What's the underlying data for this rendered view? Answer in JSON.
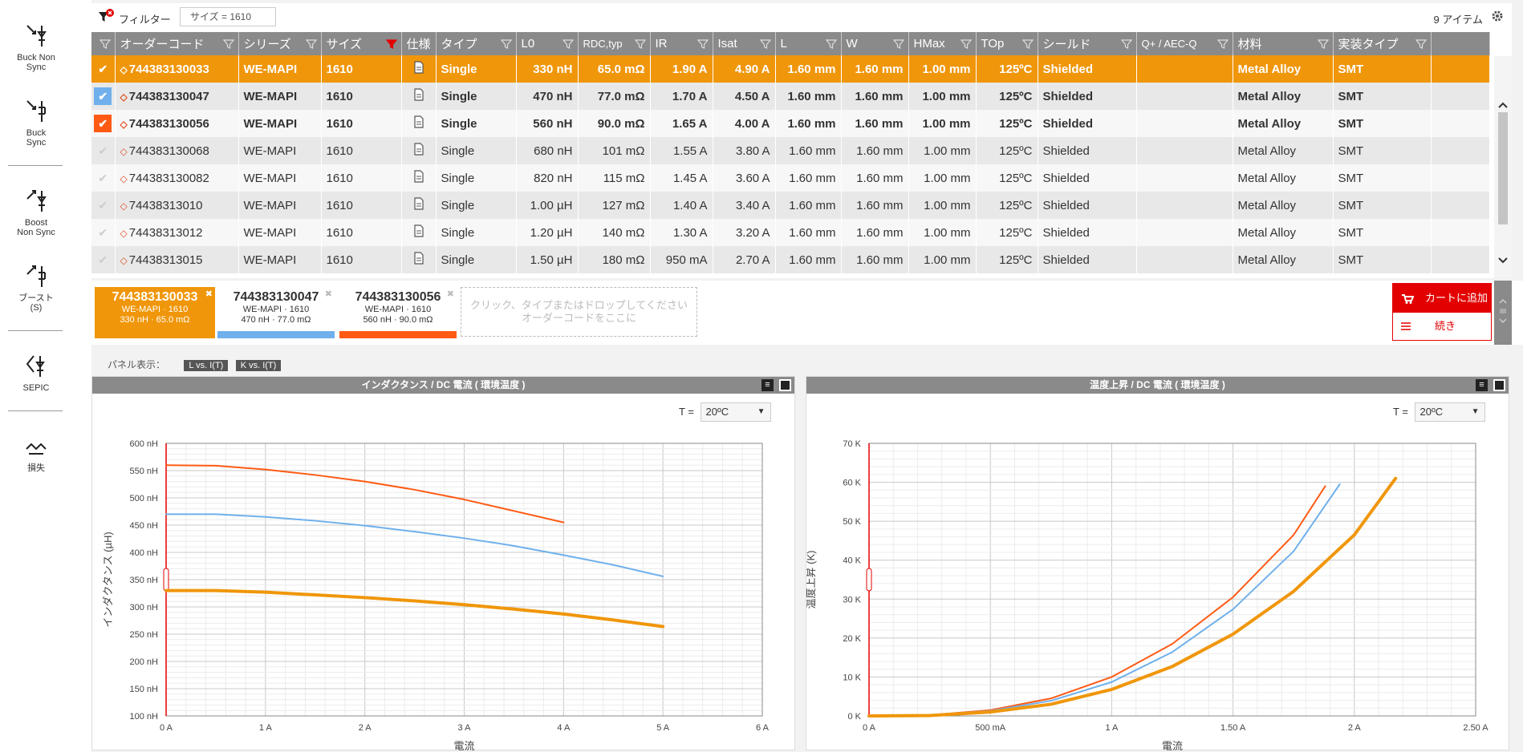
{
  "left_toolbar": [
    {
      "label_line1": "Buck Non",
      "label_line2": "Sync"
    },
    {
      "label_line1": "Buck",
      "label_line2": "Sync"
    },
    {
      "label_line1": "Boost",
      "label_line2": "Non Sync"
    },
    {
      "label_line1": "ブースト",
      "label_line2": "(S)"
    },
    {
      "label_line1": "SEPIC",
      "label_line2": ""
    },
    {
      "label_line1": "損失",
      "label_line2": ""
    }
  ],
  "topbar": {
    "filter_label": "フィルター",
    "filter_chip": "サイズ = 1610",
    "item_count": "9 アイテム"
  },
  "table": {
    "columns": [
      "",
      "オーダーコード",
      "シリーズ",
      "サイズ",
      "仕様",
      "タイプ",
      "L0",
      "RDC,typ",
      "IR",
      "Isat",
      "L",
      "W",
      "HMax",
      "TOp",
      "シールド",
      "Q+ / AEC-Q",
      "材料",
      "実装タイプ"
    ],
    "rows": [
      {
        "checked": true,
        "check_color": "#f0960a",
        "code": "744383130033",
        "series": "WE-MAPI",
        "size": "1610",
        "type": "Single",
        "l0": "330 nH",
        "rdc": "65.0 mΩ",
        "ir": "1.90 A",
        "isat": "4.90 A",
        "l": "1.60 mm",
        "w": "1.60 mm",
        "hmax": "1.00 mm",
        "top": "125ºC",
        "shield": "Shielded",
        "aec": "",
        "material": "Metal Alloy",
        "mount": "SMT"
      },
      {
        "checked": true,
        "check_color": "#6fb0ec",
        "code": "744383130047",
        "series": "WE-MAPI",
        "size": "1610",
        "type": "Single",
        "l0": "470 nH",
        "rdc": "77.0 mΩ",
        "ir": "1.70 A",
        "isat": "4.50 A",
        "l": "1.60 mm",
        "w": "1.60 mm",
        "hmax": "1.00 mm",
        "top": "125ºC",
        "shield": "Shielded",
        "aec": "",
        "material": "Metal Alloy",
        "mount": "SMT"
      },
      {
        "checked": true,
        "check_color": "#ff5a14",
        "code": "744383130056",
        "series": "WE-MAPI",
        "size": "1610",
        "type": "Single",
        "l0": "560 nH",
        "rdc": "90.0 mΩ",
        "ir": "1.65 A",
        "isat": "4.00 A",
        "l": "1.60 mm",
        "w": "1.60 mm",
        "hmax": "1.00 mm",
        "top": "125ºC",
        "shield": "Shielded",
        "aec": "",
        "material": "Metal Alloy",
        "mount": "SMT"
      },
      {
        "checked": false,
        "code": "744383130068",
        "series": "WE-MAPI",
        "size": "1610",
        "type": "Single",
        "l0": "680 nH",
        "rdc": "101 mΩ",
        "ir": "1.55 A",
        "isat": "3.80 A",
        "l": "1.60 mm",
        "w": "1.60 mm",
        "hmax": "1.00 mm",
        "top": "125ºC",
        "shield": "Shielded",
        "aec": "",
        "material": "Metal Alloy",
        "mount": "SMT"
      },
      {
        "checked": false,
        "code": "744383130082",
        "series": "WE-MAPI",
        "size": "1610",
        "type": "Single",
        "l0": "820 nH",
        "rdc": "115 mΩ",
        "ir": "1.45 A",
        "isat": "3.60 A",
        "l": "1.60 mm",
        "w": "1.60 mm",
        "hmax": "1.00 mm",
        "top": "125ºC",
        "shield": "Shielded",
        "aec": "",
        "material": "Metal Alloy",
        "mount": "SMT"
      },
      {
        "checked": false,
        "code": "74438313010",
        "series": "WE-MAPI",
        "size": "1610",
        "type": "Single",
        "l0": "1.00 µH",
        "rdc": "127 mΩ",
        "ir": "1.40 A",
        "isat": "3.40 A",
        "l": "1.60 mm",
        "w": "1.60 mm",
        "hmax": "1.00 mm",
        "top": "125ºC",
        "shield": "Shielded",
        "aec": "",
        "material": "Metal Alloy",
        "mount": "SMT"
      },
      {
        "checked": false,
        "code": "74438313012",
        "series": "WE-MAPI",
        "size": "1610",
        "type": "Single",
        "l0": "1.20 µH",
        "rdc": "140 mΩ",
        "ir": "1.30 A",
        "isat": "3.20 A",
        "l": "1.60 mm",
        "w": "1.60 mm",
        "hmax": "1.00 mm",
        "top": "125ºC",
        "shield": "Shielded",
        "aec": "",
        "material": "Metal Alloy",
        "mount": "SMT"
      },
      {
        "checked": false,
        "code": "74438313015",
        "series": "WE-MAPI",
        "size": "1610",
        "type": "Single",
        "l0": "1.50 µH",
        "rdc": "180 mΩ",
        "ir": "950 mA",
        "isat": "2.70 A",
        "l": "1.60 mm",
        "w": "1.60 mm",
        "hmax": "1.00 mm",
        "top": "125ºC",
        "shield": "Shielded",
        "aec": "",
        "material": "Metal Alloy",
        "mount": "SMT"
      }
    ]
  },
  "selection": {
    "cards": [
      {
        "code": "744383130033",
        "sub1": "WE-MAPI · 1610",
        "sub2": "330 nH · 65.0 mΩ",
        "color": "#f0960a"
      },
      {
        "code": "744383130047",
        "sub1": "WE-MAPI · 1610",
        "sub2": "470 nH · 77.0 mΩ",
        "color": "#6fb0ec"
      },
      {
        "code": "744383130056",
        "sub1": "WE-MAPI · 1610",
        "sub2": "560 nH · 90.0 mΩ",
        "color": "#ff5a14"
      }
    ],
    "drop_line1": "クリック、タイプまたはドロップしてください",
    "drop_line2": "オーダーコードをここに",
    "add_to_cart": "カートに追加",
    "continue": "続き"
  },
  "panels": {
    "label": "パネル表示：",
    "tabs": [
      "L vs. I(T)",
      "K vs. I(T)"
    ]
  },
  "charts": {
    "temp_label": "T =",
    "temp_value": "20ºC"
  },
  "chart_data": [
    {
      "type": "line",
      "title": "インダクタンス / DC 電流 ( 環境温度 )",
      "xlabel": "電流",
      "ylabel": "インダクタンス (µH)",
      "xlim": [
        0,
        6
      ],
      "ylim": [
        100,
        600
      ],
      "x_ticks": [
        "0 A",
        "1 A",
        "2 A",
        "3 A",
        "4 A",
        "5 A",
        "6 A"
      ],
      "y_ticks": [
        "100 nH",
        "150 nH",
        "200 nH",
        "250 nH",
        "300 nH",
        "350 nH",
        "400 nH",
        "450 nH",
        "500 nH",
        "550 nH",
        "600 nH"
      ],
      "grid": true,
      "series": [
        {
          "color": "#ff5a14",
          "width": 2,
          "x": [
            0,
            0.5,
            1,
            1.5,
            2,
            2.5,
            3,
            3.5,
            4
          ],
          "y": [
            560,
            559,
            552,
            542,
            530,
            515,
            497,
            476,
            455
          ]
        },
        {
          "color": "#6fb0ec",
          "width": 2,
          "x": [
            0,
            0.5,
            1,
            1.5,
            2,
            2.5,
            3,
            3.5,
            4,
            4.5,
            5
          ],
          "y": [
            470,
            470,
            465,
            458,
            449,
            438,
            426,
            412,
            395,
            377,
            356
          ]
        },
        {
          "color": "#f0960a",
          "width": 4,
          "x": [
            0,
            0.5,
            1,
            1.5,
            2,
            2.5,
            3,
            3.5,
            4,
            4.5,
            5
          ],
          "y": [
            330,
            330,
            327,
            322,
            317,
            311,
            304,
            296,
            287,
            276,
            264
          ]
        }
      ]
    },
    {
      "type": "line",
      "title": "温度上昇 / DC 電流 ( 環境温度 )",
      "xlabel": "電流",
      "ylabel": "温度上昇 (K)",
      "xlim": [
        0,
        2.5
      ],
      "ylim": [
        0,
        70
      ],
      "x_ticks": [
        "0 A",
        "500 mA",
        "1 A",
        "1.50 A",
        "2 A",
        "2.50 A"
      ],
      "y_ticks": [
        "0 K",
        "10 K",
        "20 K",
        "30 K",
        "40 K",
        "50 K",
        "60 K",
        "70 K"
      ],
      "grid": true,
      "series": [
        {
          "color": "#ff5a14",
          "width": 2,
          "x": [
            0,
            0.25,
            0.5,
            0.75,
            1.0,
            1.25,
            1.5,
            1.75,
            1.88
          ],
          "y": [
            0,
            0.2,
            1.5,
            4.5,
            10,
            18.5,
            30.5,
            46.5,
            59
          ]
        },
        {
          "color": "#6fb0ec",
          "width": 2,
          "x": [
            0,
            0.25,
            0.5,
            0.75,
            1.0,
            1.25,
            1.5,
            1.75,
            1.94
          ],
          "y": [
            0,
            0.2,
            1.3,
            3.9,
            8.7,
            16.4,
            27.4,
            42.3,
            59.5
          ]
        },
        {
          "color": "#f0960a",
          "width": 4,
          "x": [
            0,
            0.25,
            0.5,
            0.75,
            1.0,
            1.25,
            1.5,
            1.75,
            2.0,
            2.17
          ],
          "y": [
            0,
            0.1,
            1.0,
            3.0,
            6.8,
            12.7,
            21.0,
            32.0,
            46.5,
            61
          ]
        }
      ]
    }
  ]
}
